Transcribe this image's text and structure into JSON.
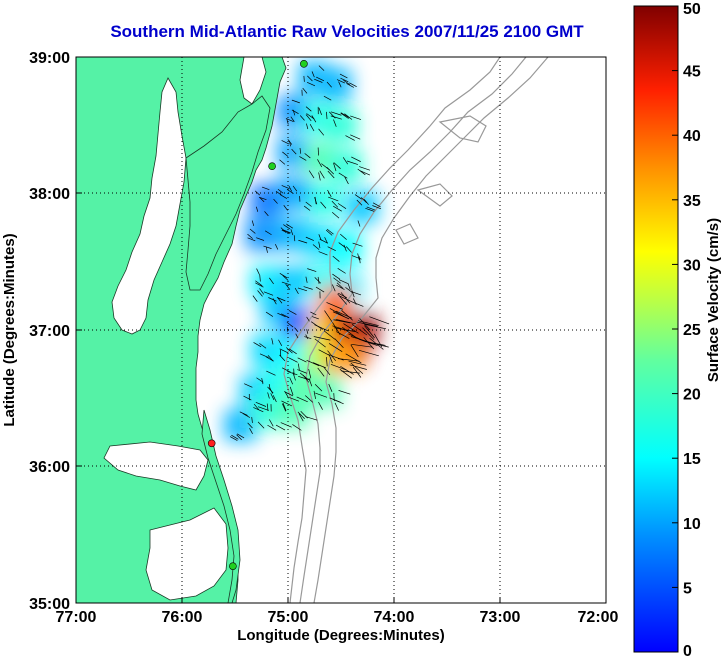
{
  "title": "Southern Mid-Atlantic Raw Velocities 2007/11/25 2100 GMT",
  "x_axis": {
    "label": "Longitude (Degrees:Minutes)",
    "ticks": [
      "77:00",
      "76:00",
      "75:00",
      "74:00",
      "73:00",
      "72:00"
    ]
  },
  "y_axis": {
    "label": "Latitude (Degrees:Minutes)",
    "ticks": [
      "35:00",
      "36:00",
      "37:00",
      "38:00",
      "39:00"
    ]
  },
  "colorbar": {
    "label": "Surface Velocity (cm/s)",
    "ticks": [
      "0",
      "5",
      "10",
      "15",
      "20",
      "25",
      "30",
      "35",
      "40",
      "45",
      "50"
    ],
    "min": 0,
    "max": 50,
    "colormap": "jet"
  },
  "colors": {
    "land": "#55f2a6",
    "water": "#ffffff",
    "title": "#0000cc",
    "bathymetry": "#999999",
    "vectors": "#000000",
    "grid": "#000000"
  },
  "map_extent": {
    "lon_west": -77.0,
    "lon_east": -72.0,
    "lat_south": 35.0,
    "lat_north": 39.0
  },
  "grid": "dotted",
  "stations": [
    {
      "color": "green",
      "lon": -74.85,
      "lat": 38.95
    },
    {
      "color": "green",
      "lon": -75.15,
      "lat": 38.2
    },
    {
      "color": "red",
      "lon": -75.72,
      "lat": 36.17
    },
    {
      "color": "green",
      "lon": -75.52,
      "lat": 35.27
    }
  ],
  "chart_data": {
    "type": "heatmap",
    "title": "Southern Mid-Atlantic Raw Velocities 2007/11/25 2100 GMT",
    "xlabel": "Longitude (Degrees:Minutes)",
    "ylabel": "Latitude (Degrees:Minutes)",
    "xlim": [
      -77.0,
      -72.0
    ],
    "ylim": [
      35.0,
      39.0
    ],
    "colorbar_range": [
      0,
      50
    ],
    "colorbar_label": "Surface Velocity (cm/s)",
    "field": [
      {
        "lon": -74.75,
        "lat": 38.85,
        "speed": 11
      },
      {
        "lon": -74.55,
        "lat": 38.8,
        "speed": 11
      },
      {
        "lon": -74.95,
        "lat": 38.6,
        "speed": 9
      },
      {
        "lon": -74.7,
        "lat": 38.55,
        "speed": 17
      },
      {
        "lon": -74.5,
        "lat": 38.5,
        "speed": 18
      },
      {
        "lon": -74.95,
        "lat": 38.3,
        "speed": 10
      },
      {
        "lon": -74.7,
        "lat": 38.25,
        "speed": 21
      },
      {
        "lon": -74.45,
        "lat": 38.2,
        "speed": 18
      },
      {
        "lon": -75.2,
        "lat": 37.95,
        "speed": 7
      },
      {
        "lon": -74.95,
        "lat": 38.0,
        "speed": 10
      },
      {
        "lon": -74.65,
        "lat": 37.95,
        "speed": 17
      },
      {
        "lon": -74.3,
        "lat": 37.9,
        "speed": 12
      },
      {
        "lon": -75.25,
        "lat": 37.7,
        "speed": 9
      },
      {
        "lon": -74.95,
        "lat": 37.7,
        "speed": 11
      },
      {
        "lon": -74.7,
        "lat": 37.65,
        "speed": 13
      },
      {
        "lon": -74.45,
        "lat": 37.6,
        "speed": 15
      },
      {
        "lon": -75.2,
        "lat": 37.35,
        "speed": 14
      },
      {
        "lon": -74.95,
        "lat": 37.35,
        "speed": 12
      },
      {
        "lon": -74.65,
        "lat": 37.35,
        "speed": 16
      },
      {
        "lon": -74.45,
        "lat": 37.3,
        "speed": 14
      },
      {
        "lon": -75.1,
        "lat": 37.15,
        "speed": 12
      },
      {
        "lon": -74.9,
        "lat": 37.05,
        "speed": 5
      },
      {
        "lon": -74.65,
        "lat": 37.0,
        "speed": 33
      },
      {
        "lon": -74.45,
        "lat": 37.0,
        "speed": 46
      },
      {
        "lon": -74.3,
        "lat": 37.0,
        "speed": 49
      },
      {
        "lon": -74.55,
        "lat": 37.2,
        "speed": 40
      },
      {
        "lon": -74.4,
        "lat": 36.85,
        "speed": 45
      },
      {
        "lon": -75.2,
        "lat": 36.85,
        "speed": 13
      },
      {
        "lon": -74.95,
        "lat": 36.8,
        "speed": 15
      },
      {
        "lon": -74.7,
        "lat": 36.8,
        "speed": 27
      },
      {
        "lon": -74.5,
        "lat": 36.8,
        "speed": 37
      },
      {
        "lon": -75.3,
        "lat": 36.55,
        "speed": 12
      },
      {
        "lon": -75.1,
        "lat": 36.6,
        "speed": 16
      },
      {
        "lon": -74.85,
        "lat": 36.6,
        "speed": 22
      },
      {
        "lon": -74.65,
        "lat": 36.55,
        "speed": 21
      },
      {
        "lon": -75.45,
        "lat": 36.3,
        "speed": 11
      },
      {
        "lon": -75.2,
        "lat": 36.4,
        "speed": 18
      },
      {
        "lon": -74.95,
        "lat": 36.4,
        "speed": 21
      }
    ]
  }
}
